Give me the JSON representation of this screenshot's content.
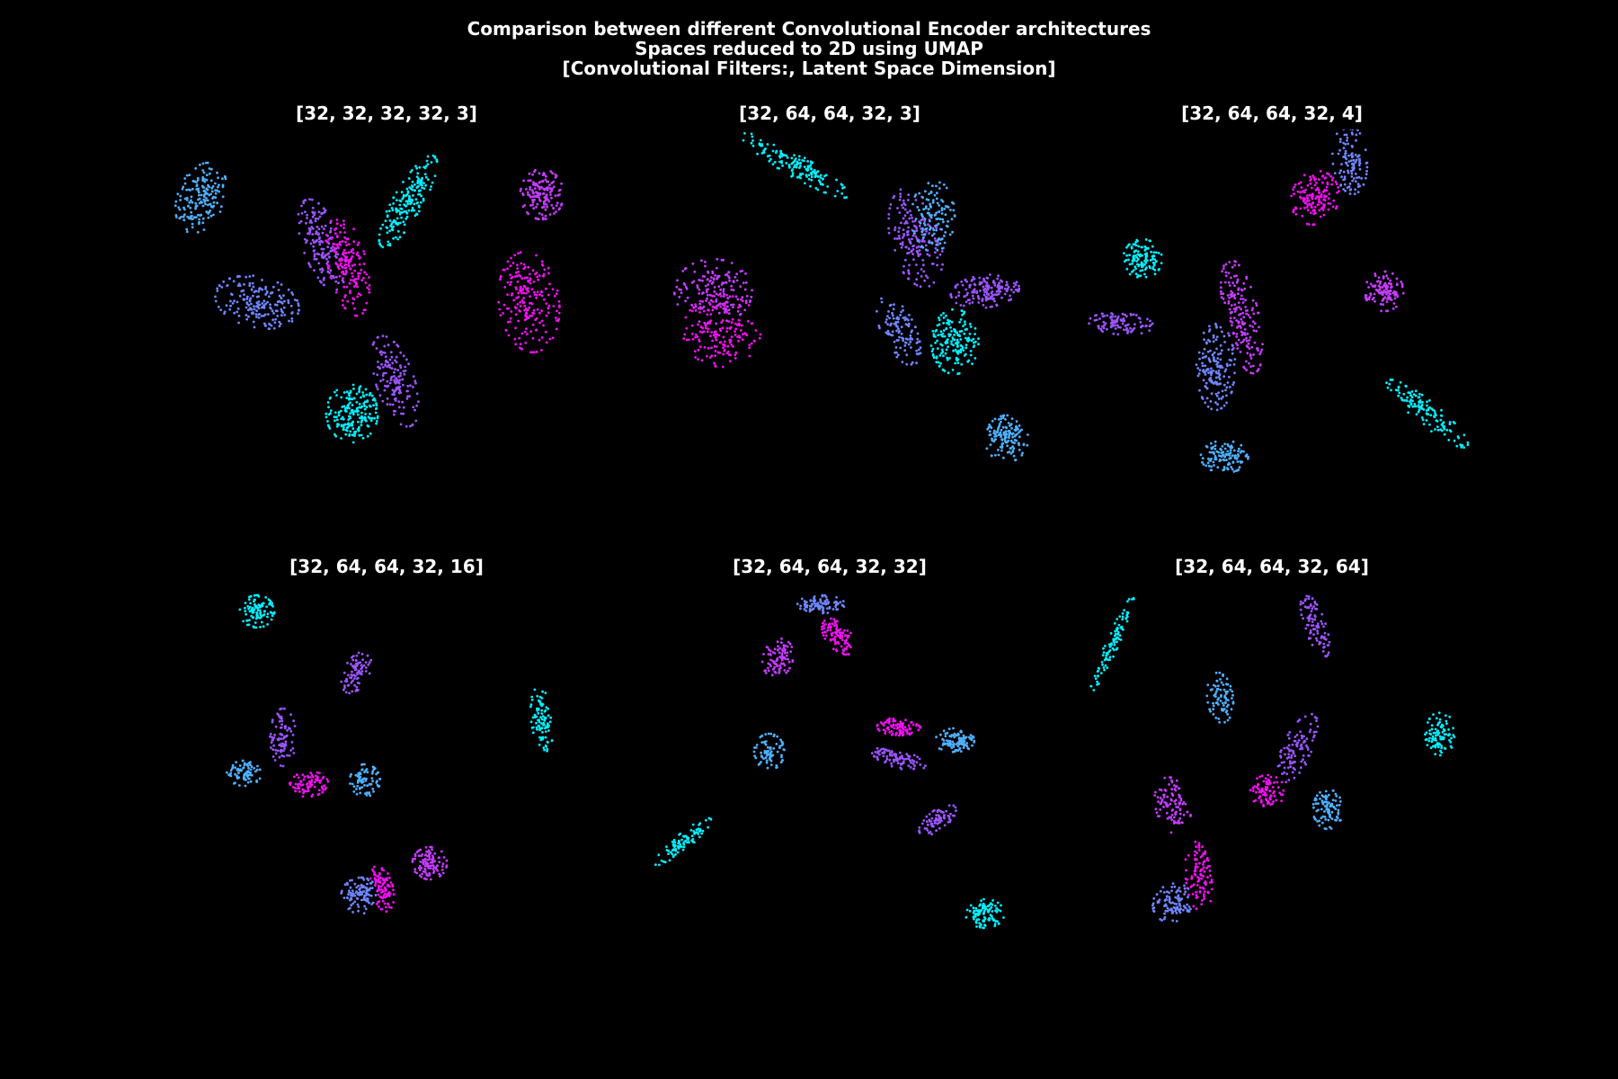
{
  "figure": {
    "title_lines": [
      "Comparison between different Convolutional Encoder architectures",
      "Spaces reduced to 2D using UMAP",
      "[Convolutional Filters:, Latent Space Dimension]"
    ],
    "background": "#000000"
  },
  "colors": {
    "cyan": "#00f0ff",
    "sky": "#4fb0ff",
    "blue": "#6f86ff",
    "violet": "#9b55ff",
    "purple": "#c43cff",
    "magenta": "#f010f0"
  },
  "chart_data": [
    {
      "type": "scatter",
      "title": "[32, 32, 32, 32, 3]",
      "axes": "off",
      "clusters": [
        {
          "color": "sky",
          "cx": -4.3,
          "cy": 3.1,
          "rx": 0.55,
          "ry": 1.0,
          "angle": -15,
          "n": 170
        },
        {
          "color": "cyan",
          "cx": 0.5,
          "cy": 3.0,
          "rx": 0.35,
          "ry": 1.4,
          "angle": -25,
          "n": 190
        },
        {
          "color": "violet",
          "cx": -1.5,
          "cy": 1.8,
          "rx": 0.45,
          "ry": 1.3,
          "angle": 15,
          "n": 160
        },
        {
          "color": "magenta",
          "cx": -0.9,
          "cy": 1.2,
          "rx": 0.45,
          "ry": 1.4,
          "angle": 10,
          "n": 170
        },
        {
          "color": "blue",
          "cx": -3.0,
          "cy": 0.2,
          "rx": 1.0,
          "ry": 0.7,
          "angle": -20,
          "n": 190
        },
        {
          "color": "purple",
          "cx": 3.6,
          "cy": 3.2,
          "rx": 0.5,
          "ry": 0.7,
          "angle": 0,
          "n": 150
        },
        {
          "color": "magenta",
          "cx": 3.3,
          "cy": 0.2,
          "rx": 0.7,
          "ry": 1.4,
          "angle": 5,
          "n": 210
        },
        {
          "color": "violet",
          "cx": 0.2,
          "cy": -2.0,
          "rx": 0.45,
          "ry": 1.3,
          "angle": 15,
          "n": 150
        },
        {
          "color": "cyan",
          "cx": -0.8,
          "cy": -2.9,
          "rx": 0.6,
          "ry": 0.8,
          "angle": 0,
          "n": 190
        }
      ]
    },
    {
      "type": "scatter",
      "title": "[32, 64, 64, 32, 3]",
      "axes": "off",
      "clusters": [
        {
          "color": "cyan",
          "cx": -0.8,
          "cy": 4.0,
          "rx": 0.3,
          "ry": 1.5,
          "angle": 55,
          "n": 150
        },
        {
          "color": "violet",
          "cx": 2.0,
          "cy": 2.0,
          "rx": 0.6,
          "ry": 1.4,
          "angle": 10,
          "n": 180
        },
        {
          "color": "sky",
          "cx": 2.4,
          "cy": 2.6,
          "rx": 0.5,
          "ry": 1.0,
          "angle": 0,
          "n": 120
        },
        {
          "color": "violet",
          "cx": 3.6,
          "cy": 0.5,
          "rx": 0.8,
          "ry": 0.45,
          "angle": 10,
          "n": 160
        },
        {
          "color": "purple",
          "cx": -2.7,
          "cy": 0.5,
          "rx": 0.9,
          "ry": 0.9,
          "angle": 0,
          "n": 170
        },
        {
          "color": "magenta",
          "cx": -2.5,
          "cy": -0.6,
          "rx": 0.9,
          "ry": 1.0,
          "angle": 0,
          "n": 170
        },
        {
          "color": "blue",
          "cx": 1.6,
          "cy": -0.6,
          "rx": 0.4,
          "ry": 1.0,
          "angle": 20,
          "n": 110
        },
        {
          "color": "cyan",
          "cx": 2.9,
          "cy": -0.9,
          "rx": 0.55,
          "ry": 0.9,
          "angle": 0,
          "n": 170
        },
        {
          "color": "sky",
          "cx": 4.1,
          "cy": -3.6,
          "rx": 0.5,
          "ry": 0.65,
          "angle": 0,
          "n": 140
        }
      ]
    },
    {
      "type": "scatter",
      "title": "[32, 64, 64, 32, 4]",
      "axes": "off",
      "clusters": [
        {
          "color": "blue",
          "cx": 1.8,
          "cy": 4.2,
          "rx": 0.4,
          "ry": 1.0,
          "angle": 5,
          "n": 120
        },
        {
          "color": "magenta",
          "cx": 1.0,
          "cy": 3.1,
          "rx": 0.55,
          "ry": 0.75,
          "angle": -10,
          "n": 150
        },
        {
          "color": "cyan",
          "cx": -3.0,
          "cy": 1.4,
          "rx": 0.45,
          "ry": 0.55,
          "angle": 0,
          "n": 120
        },
        {
          "color": "purple",
          "cx": 2.6,
          "cy": 0.5,
          "rx": 0.45,
          "ry": 0.55,
          "angle": 0,
          "n": 120
        },
        {
          "color": "violet",
          "cx": -3.5,
          "cy": -0.4,
          "rx": 0.3,
          "ry": 0.75,
          "angle": 85,
          "n": 100
        },
        {
          "color": "purple",
          "cx": -0.7,
          "cy": -0.2,
          "rx": 0.4,
          "ry": 1.6,
          "angle": 10,
          "n": 180
        },
        {
          "color": "blue",
          "cx": -1.3,
          "cy": -1.6,
          "rx": 0.45,
          "ry": 1.2,
          "angle": 0,
          "n": 160
        },
        {
          "color": "sky",
          "cx": -1.1,
          "cy": -4.1,
          "rx": 0.55,
          "ry": 0.45,
          "angle": 0,
          "n": 120
        },
        {
          "color": "cyan",
          "cx": 3.6,
          "cy": -2.9,
          "rx": 0.3,
          "ry": 1.3,
          "angle": 45,
          "n": 130
        }
      ]
    },
    {
      "type": "scatter",
      "title": "[32, 64, 64, 32, 16]",
      "axes": "off",
      "clusters": [
        {
          "color": "cyan",
          "cx": -3.0,
          "cy": 4.2,
          "rx": 0.4,
          "ry": 0.45,
          "angle": 0,
          "n": 100
        },
        {
          "color": "violet",
          "cx": -0.7,
          "cy": 2.5,
          "rx": 0.3,
          "ry": 0.6,
          "angle": -20,
          "n": 80
        },
        {
          "color": "cyan",
          "cx": 3.6,
          "cy": 1.2,
          "rx": 0.25,
          "ry": 0.9,
          "angle": 5,
          "n": 90
        },
        {
          "color": "violet",
          "cx": -2.4,
          "cy": 0.7,
          "rx": 0.3,
          "ry": 0.8,
          "angle": 0,
          "n": 90
        },
        {
          "color": "sky",
          "cx": -3.3,
          "cy": -0.3,
          "rx": 0.4,
          "ry": 0.35,
          "angle": 0,
          "n": 80
        },
        {
          "color": "magenta",
          "cx": -1.8,
          "cy": -0.6,
          "rx": 0.45,
          "ry": 0.35,
          "angle": 10,
          "n": 90
        },
        {
          "color": "sky",
          "cx": -0.5,
          "cy": -0.5,
          "rx": 0.35,
          "ry": 0.45,
          "angle": 0,
          "n": 80
        },
        {
          "color": "blue",
          "cx": -0.6,
          "cy": -3.7,
          "rx": 0.45,
          "ry": 0.5,
          "angle": 0,
          "n": 100
        },
        {
          "color": "magenta",
          "cx": -0.1,
          "cy": -3.5,
          "rx": 0.25,
          "ry": 0.65,
          "angle": 10,
          "n": 100
        },
        {
          "color": "purple",
          "cx": 1.0,
          "cy": -2.8,
          "rx": 0.4,
          "ry": 0.45,
          "angle": 0,
          "n": 110
        }
      ]
    },
    {
      "type": "scatter",
      "title": "[32, 64, 64, 32, 32]",
      "axes": "off",
      "clusters": [
        {
          "color": "blue",
          "cx": -0.2,
          "cy": 4.4,
          "rx": 0.55,
          "ry": 0.25,
          "angle": 0,
          "n": 90
        },
        {
          "color": "magenta",
          "cx": 0.2,
          "cy": 3.5,
          "rx": 0.3,
          "ry": 0.55,
          "angle": 30,
          "n": 100
        },
        {
          "color": "purple",
          "cx": -1.2,
          "cy": 2.9,
          "rx": 0.35,
          "ry": 0.55,
          "angle": -10,
          "n": 90
        },
        {
          "color": "magenta",
          "cx": 1.6,
          "cy": 1.0,
          "rx": 0.5,
          "ry": 0.25,
          "angle": 0,
          "n": 90
        },
        {
          "color": "sky",
          "cx": 2.9,
          "cy": 0.6,
          "rx": 0.45,
          "ry": 0.35,
          "angle": 0,
          "n": 100
        },
        {
          "color": "violet",
          "cx": 1.6,
          "cy": 0.1,
          "rx": 0.65,
          "ry": 0.25,
          "angle": -20,
          "n": 90
        },
        {
          "color": "sky",
          "cx": -1.4,
          "cy": 0.3,
          "rx": 0.35,
          "ry": 0.5,
          "angle": 0,
          "n": 80
        },
        {
          "color": "violet",
          "cx": 2.5,
          "cy": -1.6,
          "rx": 0.25,
          "ry": 0.55,
          "angle": -45,
          "n": 80
        },
        {
          "color": "cyan",
          "cx": -3.4,
          "cy": -2.2,
          "rx": 0.2,
          "ry": 0.9,
          "angle": -45,
          "n": 90
        },
        {
          "color": "cyan",
          "cx": 3.6,
          "cy": -4.2,
          "rx": 0.45,
          "ry": 0.4,
          "angle": 0,
          "n": 100
        }
      ]
    },
    {
      "type": "scatter",
      "title": "[32, 64, 64, 32, 64]",
      "axes": "off",
      "clusters": [
        {
          "color": "cyan",
          "cx": -3.7,
          "cy": 3.3,
          "rx": 0.15,
          "ry": 1.4,
          "angle": -20,
          "n": 100
        },
        {
          "color": "violet",
          "cx": 1.0,
          "cy": 3.8,
          "rx": 0.25,
          "ry": 0.9,
          "angle": 15,
          "n": 90
        },
        {
          "color": "sky",
          "cx": -1.2,
          "cy": 1.8,
          "rx": 0.3,
          "ry": 0.7,
          "angle": 5,
          "n": 80
        },
        {
          "color": "cyan",
          "cx": 3.9,
          "cy": 0.8,
          "rx": 0.35,
          "ry": 0.6,
          "angle": 0,
          "n": 90
        },
        {
          "color": "violet",
          "cx": 0.6,
          "cy": 0.4,
          "rx": 0.35,
          "ry": 1.0,
          "angle": -20,
          "n": 100
        },
        {
          "color": "magenta",
          "cx": -0.1,
          "cy": -0.8,
          "rx": 0.4,
          "ry": 0.45,
          "angle": 0,
          "n": 90
        },
        {
          "color": "sky",
          "cx": 1.3,
          "cy": -1.3,
          "rx": 0.35,
          "ry": 0.55,
          "angle": 0,
          "n": 90
        },
        {
          "color": "purple",
          "cx": -2.3,
          "cy": -1.2,
          "rx": 0.4,
          "ry": 0.8,
          "angle": 10,
          "n": 100
        },
        {
          "color": "magenta",
          "cx": -1.7,
          "cy": -3.2,
          "rx": 0.3,
          "ry": 1.0,
          "angle": 5,
          "n": 100
        },
        {
          "color": "blue",
          "cx": -2.3,
          "cy": -3.9,
          "rx": 0.45,
          "ry": 0.55,
          "angle": -20,
          "n": 100
        }
      ]
    }
  ]
}
